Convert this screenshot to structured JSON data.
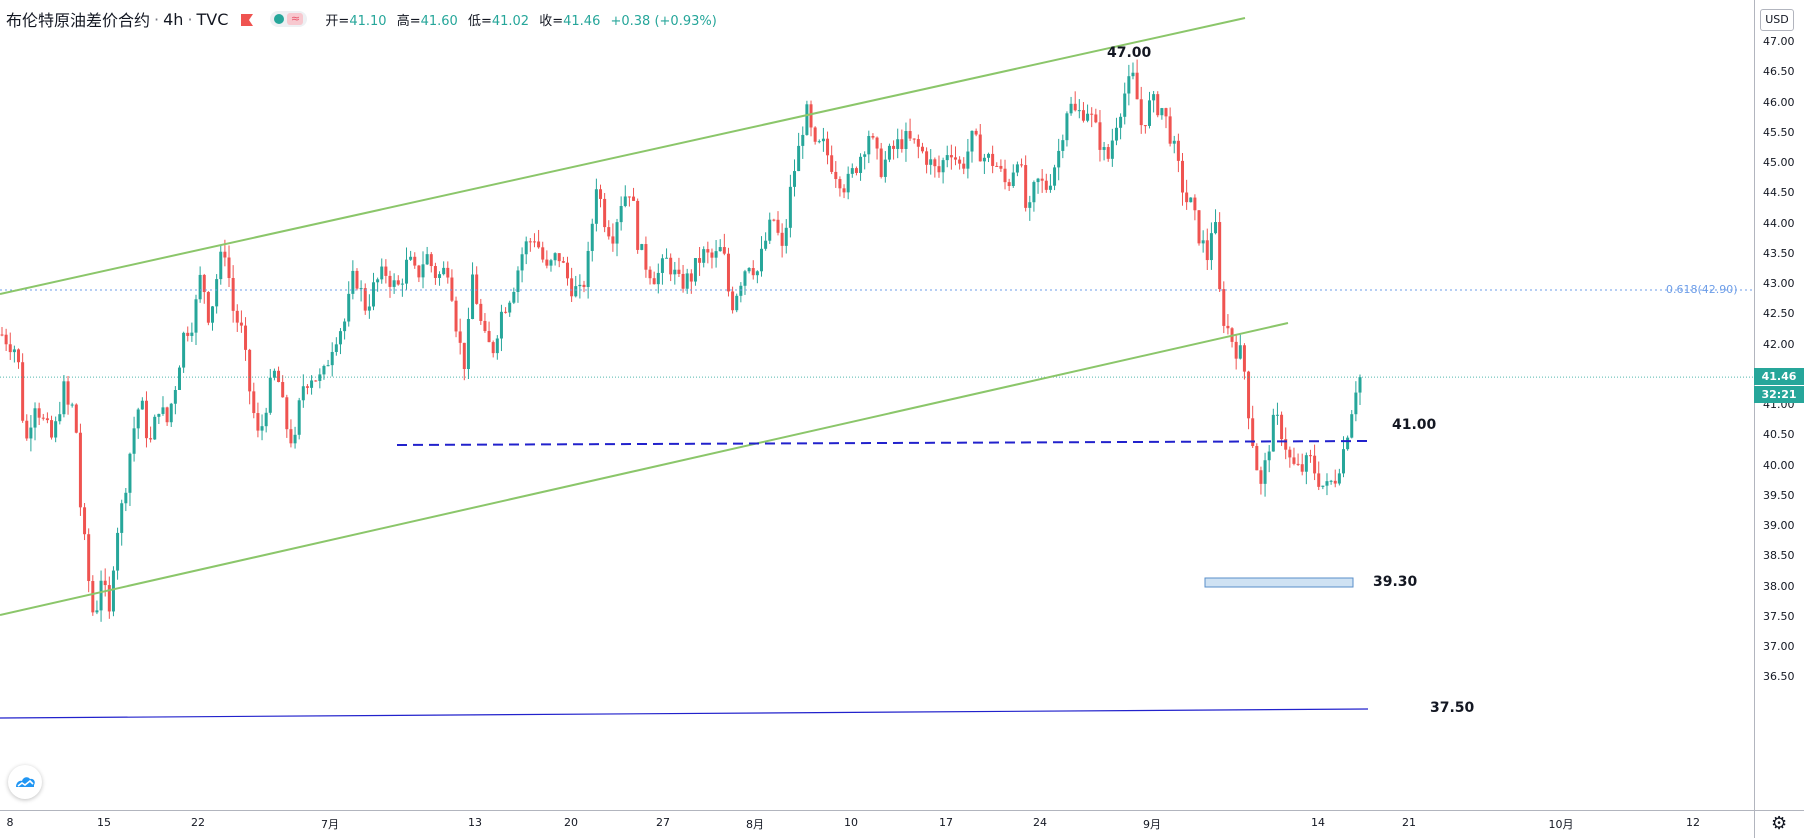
{
  "legend": {
    "symbol": "布伦特原油差价合约",
    "interval": "4h",
    "source": "TVC",
    "open_label": "开=",
    "open": "41.10",
    "high_label": "高=",
    "high": "41.60",
    "low_label": "低=",
    "low": "41.02",
    "close_label": "收=",
    "close": "41.46",
    "change": "+0.38 (+0.93%)",
    "waves_glyph": "≈"
  },
  "colors": {
    "up": "#26a69a",
    "down": "#ef5350",
    "channel": "#8bc66a",
    "support": "#2222cc",
    "fib": "#6e9ee8",
    "box_fill": "#cfe2f3"
  },
  "price_scale": {
    "currency_button": "USD",
    "ticks": [
      "47.00",
      "46.50",
      "46.00",
      "45.50",
      "45.00",
      "44.50",
      "44.00",
      "43.50",
      "43.00",
      "42.50",
      "42.00",
      "41.50",
      "41.00",
      "40.50",
      "40.00",
      "39.50",
      "39.00",
      "38.50",
      "38.00",
      "37.50",
      "37.00",
      "36.50"
    ],
    "last_price": "41.46",
    "countdown": "32:21"
  },
  "time_scale": {
    "labels": [
      "8",
      "15",
      "22",
      "7月",
      "13",
      "20",
      "27",
      "8月",
      "10",
      "17",
      "24",
      "9月",
      "14",
      "21",
      "10月",
      "12"
    ]
  },
  "annotations": {
    "peak": "47.00",
    "resistance": "41.00",
    "support_box": "39.30",
    "long_support": "37.50",
    "fib": "0.618(42.90)"
  },
  "icons": {
    "logo": "tradingview-logo-icon",
    "settings": "gear-icon",
    "flag": "flag-icon"
  },
  "chart_data": {
    "type": "candlestick",
    "price_range": [
      36.2,
      47.6
    ],
    "path": [
      [
        0,
        42.2
      ],
      [
        15,
        41.9
      ],
      [
        22,
        40.3
      ],
      [
        30,
        41.1
      ],
      [
        38,
        40.7
      ],
      [
        46,
        40.4
      ],
      [
        55,
        41.3
      ],
      [
        60,
        40.9
      ],
      [
        65,
        41.0
      ],
      [
        70,
        39.3
      ],
      [
        77,
        38.1
      ],
      [
        82,
        37.4
      ],
      [
        88,
        38.2
      ],
      [
        95,
        37.5
      ],
      [
        100,
        38.8
      ],
      [
        107,
        39.4
      ],
      [
        115,
        40.5
      ],
      [
        122,
        41.1
      ],
      [
        130,
        40.3
      ],
      [
        138,
        41.0
      ],
      [
        145,
        40.7
      ],
      [
        152,
        41.3
      ],
      [
        160,
        42.2
      ],
      [
        168,
        42.4
      ],
      [
        175,
        43.2
      ],
      [
        182,
        42.4
      ],
      [
        190,
        43.3
      ],
      [
        196,
        43.6
      ],
      [
        202,
        42.6
      ],
      [
        210,
        42.2
      ],
      [
        218,
        41.1
      ],
      [
        225,
        40.4
      ],
      [
        232,
        41.1
      ],
      [
        240,
        41.6
      ],
      [
        248,
        40.7
      ],
      [
        256,
        40.3
      ],
      [
        262,
        41.3
      ],
      [
        270,
        41.5
      ],
      [
        280,
        41.4
      ],
      [
        290,
        42.1
      ],
      [
        300,
        42.4
      ],
      [
        308,
        43.2
      ],
      [
        318,
        42.6
      ],
      [
        326,
        43.0
      ],
      [
        335,
        43.2
      ],
      [
        345,
        42.9
      ],
      [
        355,
        43.4
      ],
      [
        362,
        43.1
      ],
      [
        370,
        43.5
      ],
      [
        380,
        43.1
      ],
      [
        390,
        43.3
      ],
      [
        398,
        42.1
      ],
      [
        405,
        41.6
      ],
      [
        410,
        43.2
      ],
      [
        420,
        42.1
      ],
      [
        428,
        41.9
      ],
      [
        435,
        42.5
      ],
      [
        445,
        42.9
      ],
      [
        455,
        43.6
      ],
      [
        465,
        43.8
      ],
      [
        475,
        43.2
      ],
      [
        485,
        43.5
      ],
      [
        495,
        43.0
      ],
      [
        505,
        42.8
      ],
      [
        512,
        43.5
      ],
      [
        518,
        44.7
      ],
      [
        525,
        44.1
      ],
      [
        532,
        43.8
      ],
      [
        540,
        44.4
      ],
      [
        548,
        44.6
      ],
      [
        555,
        43.6
      ],
      [
        562,
        43.3
      ],
      [
        570,
        43.1
      ],
      [
        580,
        43.4
      ],
      [
        590,
        43.0
      ],
      [
        600,
        43.1
      ],
      [
        610,
        43.5
      ],
      [
        620,
        43.4
      ],
      [
        628,
        43.6
      ],
      [
        635,
        42.6
      ],
      [
        642,
        43.0
      ],
      [
        650,
        43.4
      ],
      [
        658,
        43.2
      ],
      [
        665,
        43.7
      ],
      [
        672,
        44.1
      ],
      [
        680,
        43.5
      ],
      [
        688,
        44.7
      ],
      [
        695,
        45.3
      ],
      [
        700,
        45.9
      ],
      [
        708,
        45.2
      ],
      [
        715,
        45.3
      ],
      [
        725,
        44.9
      ],
      [
        735,
        44.6
      ],
      [
        745,
        45.0
      ],
      [
        755,
        45.5
      ],
      [
        765,
        44.9
      ],
      [
        775,
        45.2
      ],
      [
        785,
        45.4
      ],
      [
        795,
        45.3
      ],
      [
        805,
        45.1
      ],
      [
        815,
        44.8
      ],
      [
        825,
        45.3
      ],
      [
        835,
        44.9
      ],
      [
        845,
        45.4
      ],
      [
        855,
        45.1
      ],
      [
        865,
        45.0
      ],
      [
        875,
        44.6
      ],
      [
        885,
        45.2
      ],
      [
        893,
        44.0
      ],
      [
        900,
        44.7
      ],
      [
        910,
        44.6
      ],
      [
        920,
        45.2
      ],
      [
        928,
        46.0
      ],
      [
        935,
        45.8
      ],
      [
        945,
        45.9
      ],
      [
        955,
        45.4
      ],
      [
        962,
        45.0
      ],
      [
        970,
        45.7
      ],
      [
        978,
        46.2
      ],
      [
        985,
        46.4
      ],
      [
        992,
        45.6
      ],
      [
        1000,
        46.0
      ],
      [
        1010,
        45.9
      ],
      [
        1018,
        45.4
      ],
      [
        1025,
        44.8
      ],
      [
        1030,
        44.4
      ],
      [
        1035,
        44.3
      ],
      [
        1042,
        43.8
      ],
      [
        1050,
        43.4
      ],
      [
        1055,
        44.4
      ],
      [
        1058,
        43.1
      ],
      [
        1062,
        42.5
      ],
      [
        1068,
        42.2
      ],
      [
        1075,
        41.9
      ],
      [
        1080,
        41.8
      ],
      [
        1085,
        40.9
      ],
      [
        1090,
        40.2
      ],
      [
        1096,
        39.6
      ],
      [
        1102,
        40.3
      ],
      [
        1108,
        40.8
      ],
      [
        1115,
        40.5
      ],
      [
        1122,
        40.0
      ],
      [
        1130,
        39.9
      ],
      [
        1138,
        40.1
      ],
      [
        1145,
        39.8
      ],
      [
        1152,
        39.6
      ],
      [
        1160,
        39.8
      ],
      [
        1168,
        40.3
      ],
      [
        1174,
        40.9
      ],
      [
        1180,
        41.5
      ]
    ],
    "last_close": 41.46,
    "levels": [
      {
        "price": 47.0,
        "label": "47.00"
      },
      {
        "price": 41.0,
        "label": "41.00"
      },
      {
        "price": 39.3,
        "label": "39.30"
      },
      {
        "price": 37.5,
        "label": "37.50"
      },
      {
        "price": 42.9,
        "label": "0.618(42.90)"
      }
    ]
  }
}
